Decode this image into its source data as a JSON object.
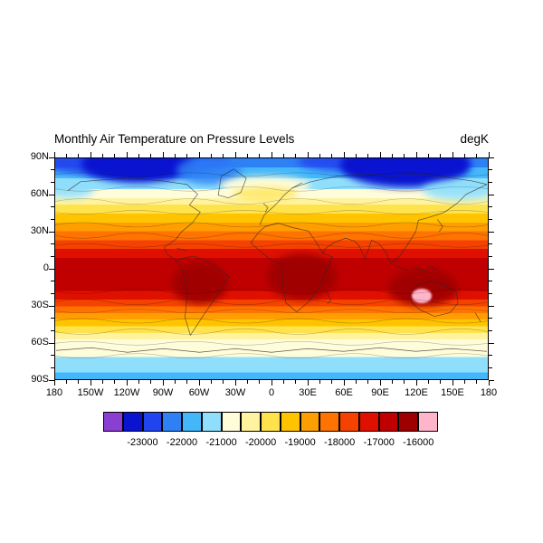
{
  "title": "Monthly Air Temperature on Pressure Levels",
  "units": "degK",
  "axes": {
    "lat_ticks": [
      "90N",
      "60N",
      "30N",
      "0",
      "30S",
      "60S",
      "90S"
    ],
    "lon_ticks": [
      "180",
      "150W",
      "120W",
      "90W",
      "60W",
      "30W",
      "0",
      "30E",
      "60E",
      "90E",
      "120E",
      "150E",
      "180"
    ]
  },
  "colorbar": {
    "labels": [
      "-23000",
      "-22000",
      "-21000",
      "-20000",
      "-19000",
      "-18000",
      "-17000",
      "-16000"
    ],
    "colors": [
      "#8b3fd1",
      "#0a14d0",
      "#2244ee",
      "#2e80f5",
      "#44b7fa",
      "#8fdffc",
      "#fffcd9",
      "#fff3a0",
      "#ffe34d",
      "#ffc300",
      "#ff9e00",
      "#ff7300",
      "#f54200",
      "#e01000",
      "#c00000",
      "#9e0000",
      "#ffb5c9"
    ]
  },
  "chart_data": {
    "type": "heatmap",
    "title": "Monthly Air Temperature on Pressure Levels",
    "units": "degK",
    "projection": "global cylindrical-equidistant map with coastlines, filled contours",
    "x_ticks": [
      "180",
      "150W",
      "120W",
      "90W",
      "60W",
      "30W",
      "0",
      "30E",
      "60E",
      "90E",
      "120E",
      "150E",
      "180"
    ],
    "y_ticks": [
      "90N",
      "60N",
      "30N",
      "0",
      "30S",
      "60S",
      "90S"
    ],
    "contour_levels": [
      -23500,
      -23000,
      -22500,
      -22000,
      -21500,
      -21000,
      -20500,
      -20000,
      -19500,
      -19000,
      -18500,
      -18000,
      -17500,
      -17000,
      -16500,
      -16000
    ],
    "fill_colors": [
      "#8b3fd1",
      "#0a14d0",
      "#2244ee",
      "#2e80f5",
      "#44b7fa",
      "#8fdffc",
      "#fffcd9",
      "#fff3a0",
      "#ffe34d",
      "#ffc300",
      "#ff9e00",
      "#ff7300",
      "#f54200",
      "#e01000",
      "#c00000",
      "#9e0000",
      "#ffb5c9"
    ],
    "legend_position": "horizontal label bar below map, labels every 1000",
    "zonal_mean_profile": {
      "lat": [
        90,
        75,
        60,
        45,
        30,
        15,
        0,
        -15,
        -30,
        -45,
        -60,
        -75,
        -90
      ],
      "value": [
        -22600,
        -21600,
        -20600,
        -19400,
        -18300,
        -17200,
        -16700,
        -16500,
        -17600,
        -19200,
        -20700,
        -21100,
        -21200
      ]
    },
    "features": [
      "cold cores below -23000 (dark blue/purple) over northern Canada and eastern Siberia near 70-85N",
      "warm tongue (about -20500 to -20000, cream/yellow) pushing north over the North Atlantic and Scandinavia",
      "cold tongue (light blue) dipping south over the northwest Pacific near the dateline",
      "hottest band (-17000 to -16000, red/dark red) between about 20N and 25S with cores over equatorial South America, central Africa and the Indonesia/Australia sector",
      "small local maximum above -16000 (pink cell) near 120E, 25-30S over Australia",
      "cream band (-21000 to -20500) encircling 55-70S with light blue (below -21000) over Antarctica"
    ]
  }
}
